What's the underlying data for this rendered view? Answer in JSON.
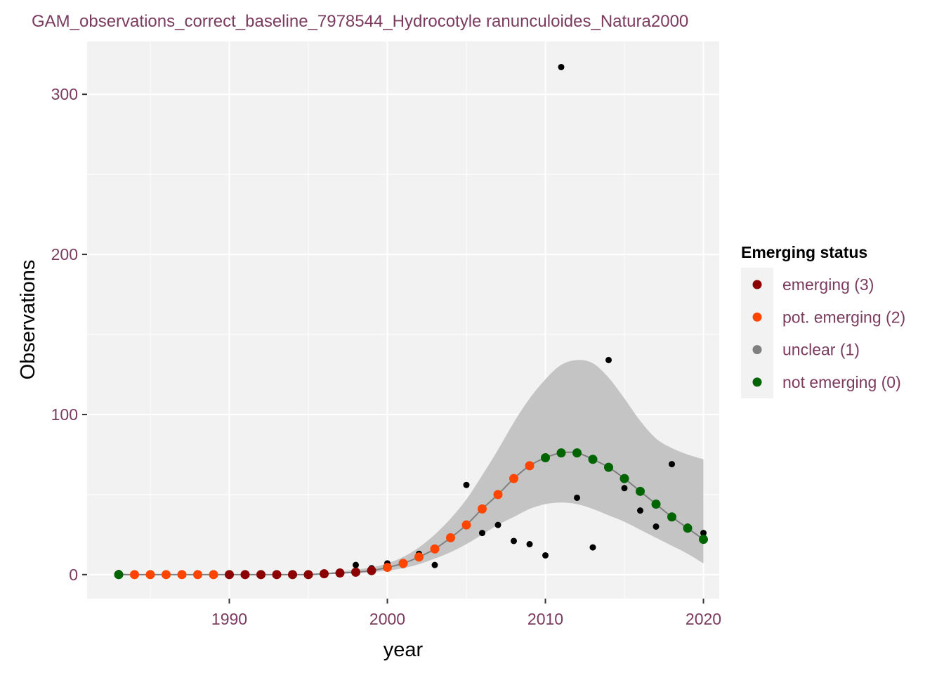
{
  "chart_data": {
    "type": "scatter",
    "title": "GAM_observations_correct_baseline_7978544_Hydrocotyle ranunculoides_Natura2000",
    "xlabel": "year",
    "ylabel": "Observations",
    "xlim": [
      1981,
      2021
    ],
    "ylim": [
      -15,
      333
    ],
    "x_ticks": [
      1990,
      2000,
      2010,
      2020
    ],
    "x_minor_ticks": [
      1985,
      1995,
      2005,
      2015
    ],
    "y_ticks": [
      0,
      100,
      200,
      300
    ],
    "y_minor_ticks": [
      50,
      150,
      250
    ],
    "grid": true,
    "legend": {
      "title": "Emerging status",
      "placement": "right",
      "entries": [
        {
          "label": "emerging (3)",
          "color": "#8b0000"
        },
        {
          "label": "pot. emerging (2)",
          "color": "#ff4500"
        },
        {
          "label": "unclear (1)",
          "color": "#808080"
        },
        {
          "label": "not emerging (0)",
          "color": "#006400"
        }
      ]
    },
    "observations": [
      {
        "x": 1983,
        "y": 1
      },
      {
        "x": 1984,
        "y": 0
      },
      {
        "x": 1985,
        "y": 0
      },
      {
        "x": 1986,
        "y": 0
      },
      {
        "x": 1987,
        "y": 0
      },
      {
        "x": 1988,
        "y": 0
      },
      {
        "x": 1989,
        "y": 0
      },
      {
        "x": 1990,
        "y": 0
      },
      {
        "x": 1991,
        "y": 0
      },
      {
        "x": 1992,
        "y": 0
      },
      {
        "x": 1993,
        "y": 0
      },
      {
        "x": 1994,
        "y": 0
      },
      {
        "x": 1995,
        "y": 0
      },
      {
        "x": 1996,
        "y": 1
      },
      {
        "x": 1997,
        "y": 1
      },
      {
        "x": 1998,
        "y": 6
      },
      {
        "x": 1999,
        "y": 4
      },
      {
        "x": 2000,
        "y": 7
      },
      {
        "x": 2001,
        "y": 6
      },
      {
        "x": 2002,
        "y": 13
      },
      {
        "x": 2003,
        "y": 6
      },
      {
        "x": 2004,
        "y": 23
      },
      {
        "x": 2005,
        "y": 56
      },
      {
        "x": 2006,
        "y": 26
      },
      {
        "x": 2007,
        "y": 31
      },
      {
        "x": 2008,
        "y": 21
      },
      {
        "x": 2009,
        "y": 19
      },
      {
        "x": 2010,
        "y": 12
      },
      {
        "x": 2011,
        "y": 317
      },
      {
        "x": 2012,
        "y": 48
      },
      {
        "x": 2013,
        "y": 17
      },
      {
        "x": 2014,
        "y": 134
      },
      {
        "x": 2015,
        "y": 54
      },
      {
        "x": 2016,
        "y": 40
      },
      {
        "x": 2017,
        "y": 30
      },
      {
        "x": 2018,
        "y": 69
      },
      {
        "x": 2019,
        "y": 30
      },
      {
        "x": 2020,
        "y": 26
      }
    ],
    "fit": [
      {
        "x": 1983,
        "y": 0,
        "lower": 0,
        "upper": 1,
        "status": 0
      },
      {
        "x": 1984,
        "y": 0,
        "lower": 0,
        "upper": 0,
        "status": 2
      },
      {
        "x": 1985,
        "y": 0,
        "lower": 0,
        "upper": 0,
        "status": 2
      },
      {
        "x": 1986,
        "y": 0,
        "lower": 0,
        "upper": 0,
        "status": 2
      },
      {
        "x": 1987,
        "y": 0,
        "lower": 0,
        "upper": 0,
        "status": 2
      },
      {
        "x": 1988,
        "y": 0,
        "lower": 0,
        "upper": 0,
        "status": 2
      },
      {
        "x": 1989,
        "y": 0,
        "lower": 0,
        "upper": 0,
        "status": 2
      },
      {
        "x": 1990,
        "y": 0,
        "lower": 0,
        "upper": 0,
        "status": 3
      },
      {
        "x": 1991,
        "y": 0,
        "lower": 0,
        "upper": 0,
        "status": 3
      },
      {
        "x": 1992,
        "y": 0,
        "lower": 0,
        "upper": 0,
        "status": 3
      },
      {
        "x": 1993,
        "y": 0,
        "lower": 0,
        "upper": 0,
        "status": 3
      },
      {
        "x": 1994,
        "y": 0,
        "lower": 0,
        "upper": 0,
        "status": 3
      },
      {
        "x": 1995,
        "y": 0,
        "lower": 0,
        "upper": 0.5,
        "status": 3
      },
      {
        "x": 1996,
        "y": 0.5,
        "lower": 0.2,
        "upper": 1,
        "status": 3
      },
      {
        "x": 1997,
        "y": 1,
        "lower": 0.5,
        "upper": 2,
        "status": 3
      },
      {
        "x": 1998,
        "y": 1.5,
        "lower": 1,
        "upper": 3,
        "status": 3
      },
      {
        "x": 1999,
        "y": 2.5,
        "lower": 1.5,
        "upper": 4.5,
        "status": 3
      },
      {
        "x": 2000,
        "y": 4.5,
        "lower": 2.5,
        "upper": 7,
        "status": 2
      },
      {
        "x": 2001,
        "y": 7,
        "lower": 4,
        "upper": 11,
        "status": 2
      },
      {
        "x": 2002,
        "y": 11,
        "lower": 6.5,
        "upper": 17,
        "status": 2
      },
      {
        "x": 2003,
        "y": 16,
        "lower": 10,
        "upper": 25,
        "status": 2
      },
      {
        "x": 2004,
        "y": 23,
        "lower": 14,
        "upper": 35,
        "status": 2
      },
      {
        "x": 2005,
        "y": 31,
        "lower": 19,
        "upper": 47,
        "status": 2
      },
      {
        "x": 2006,
        "y": 41,
        "lower": 25,
        "upper": 62,
        "status": 2
      },
      {
        "x": 2007,
        "y": 50,
        "lower": 31,
        "upper": 78,
        "status": 2
      },
      {
        "x": 2008,
        "y": 60,
        "lower": 36,
        "upper": 95,
        "status": 2
      },
      {
        "x": 2009,
        "y": 68,
        "lower": 41,
        "upper": 110,
        "status": 2
      },
      {
        "x": 2010,
        "y": 73,
        "lower": 44,
        "upper": 122,
        "status": 0
      },
      {
        "x": 2011,
        "y": 76,
        "lower": 45,
        "upper": 131,
        "status": 0
      },
      {
        "x": 2012,
        "y": 76,
        "lower": 44,
        "upper": 134,
        "status": 0
      },
      {
        "x": 2013,
        "y": 72,
        "lower": 41,
        "upper": 132,
        "status": 0
      },
      {
        "x": 2014,
        "y": 67,
        "lower": 37,
        "upper": 123,
        "status": 0
      },
      {
        "x": 2015,
        "y": 60,
        "lower": 33,
        "upper": 110,
        "status": 0
      },
      {
        "x": 2016,
        "y": 52,
        "lower": 28,
        "upper": 96,
        "status": 0
      },
      {
        "x": 2017,
        "y": 44,
        "lower": 23,
        "upper": 85,
        "status": 0
      },
      {
        "x": 2018,
        "y": 36,
        "lower": 18,
        "upper": 79,
        "status": 0
      },
      {
        "x": 2019,
        "y": 29,
        "lower": 13,
        "upper": 75,
        "status": 0
      },
      {
        "x": 2020,
        "y": 22,
        "lower": 7,
        "upper": 72,
        "status": 0
      }
    ],
    "colors": {
      "panel_background": "#f2f2f2",
      "grid": "#ffffff",
      "ribbon": "#c4c4c4",
      "fit_line": "#808080",
      "observation_point": "#000000",
      "text_accent": "#7b3b5e"
    }
  }
}
